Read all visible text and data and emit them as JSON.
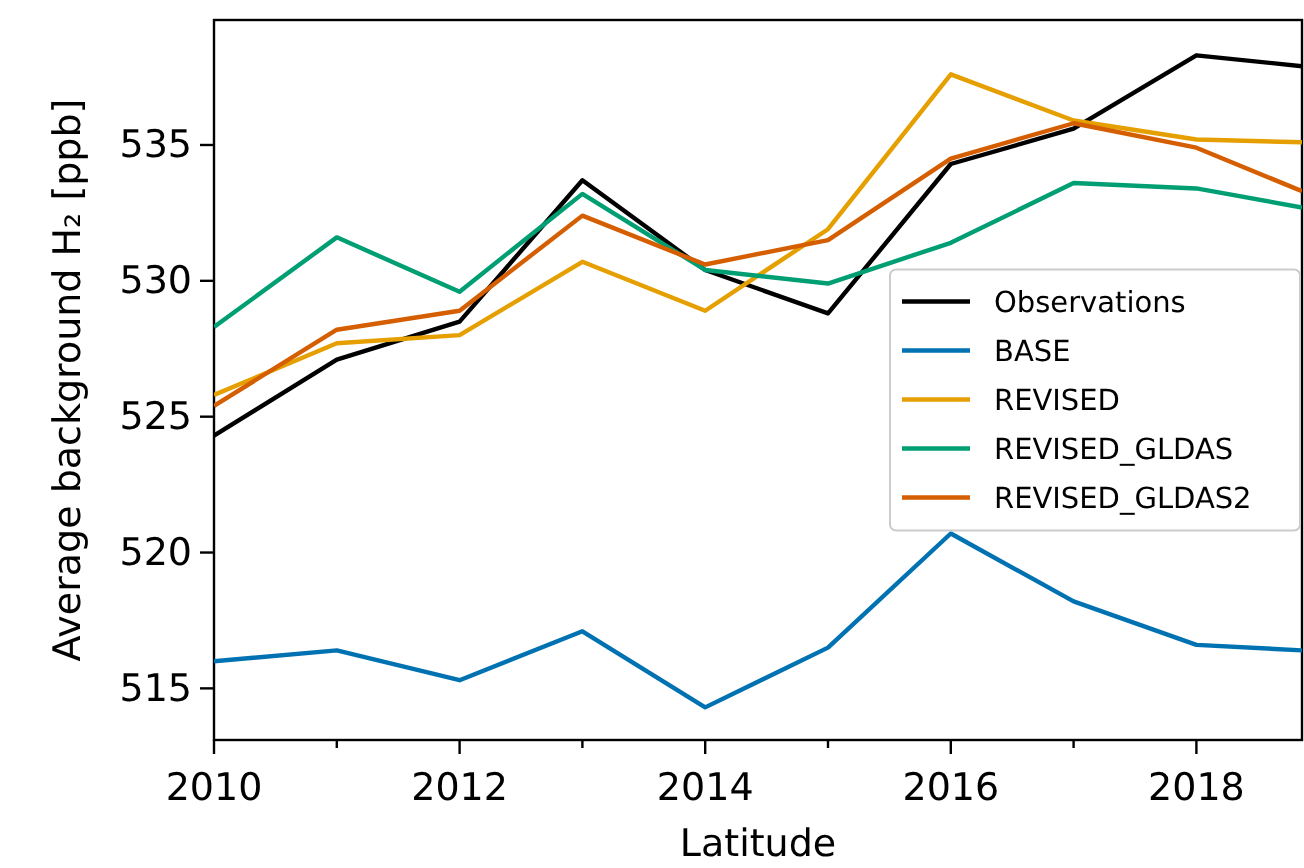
{
  "chart_data": {
    "type": "line",
    "xlabel": "Latitude",
    "ylabel": "Average background H₂ [ppb]",
    "x": [
      2010,
      2011,
      2012,
      2013,
      2014,
      2015,
      2016,
      2017,
      2018,
      2018.86
    ],
    "xlim": [
      2010,
      2018.86
    ],
    "ylim": [
      513.1,
      539.6
    ],
    "xticks": [
      2010,
      {
        "value": 2011,
        "label": null
      },
      2012,
      {
        "value": 2013,
        "label": null
      },
      2014,
      {
        "value": 2015,
        "label": null
      },
      2016,
      {
        "value": 2017,
        "label": null
      },
      2018
    ],
    "yticks": [
      515,
      520,
      525,
      530,
      535
    ],
    "grid": false,
    "legend": "right",
    "marker": "none",
    "line_style": "solid",
    "series": [
      {
        "name": "Observations",
        "color": "#000000",
        "values": [
          524.3,
          527.1,
          528.5,
          533.7,
          530.4,
          528.8,
          534.3,
          535.6,
          538.3,
          537.9
        ]
      },
      {
        "name": "BASE",
        "color": "#0072b2",
        "values": [
          516.0,
          516.4,
          515.3,
          517.1,
          514.3,
          516.5,
          520.7,
          518.2,
          516.6,
          516.4
        ]
      },
      {
        "name": "REVISED",
        "color": "#e69f00",
        "values": [
          525.8,
          527.7,
          528.0,
          530.7,
          528.9,
          531.9,
          537.6,
          535.9,
          535.2,
          535.1
        ]
      },
      {
        "name": "REVISED_GLDAS",
        "color": "#009e73",
        "values": [
          528.3,
          531.6,
          529.6,
          533.2,
          530.4,
          529.9,
          531.4,
          533.6,
          533.4,
          532.7
        ]
      },
      {
        "name": "REVISED_GLDAS2",
        "color": "#d55e00",
        "values": [
          525.4,
          528.2,
          528.9,
          532.4,
          530.6,
          531.5,
          534.5,
          535.8,
          534.9,
          533.3
        ]
      }
    ]
  }
}
